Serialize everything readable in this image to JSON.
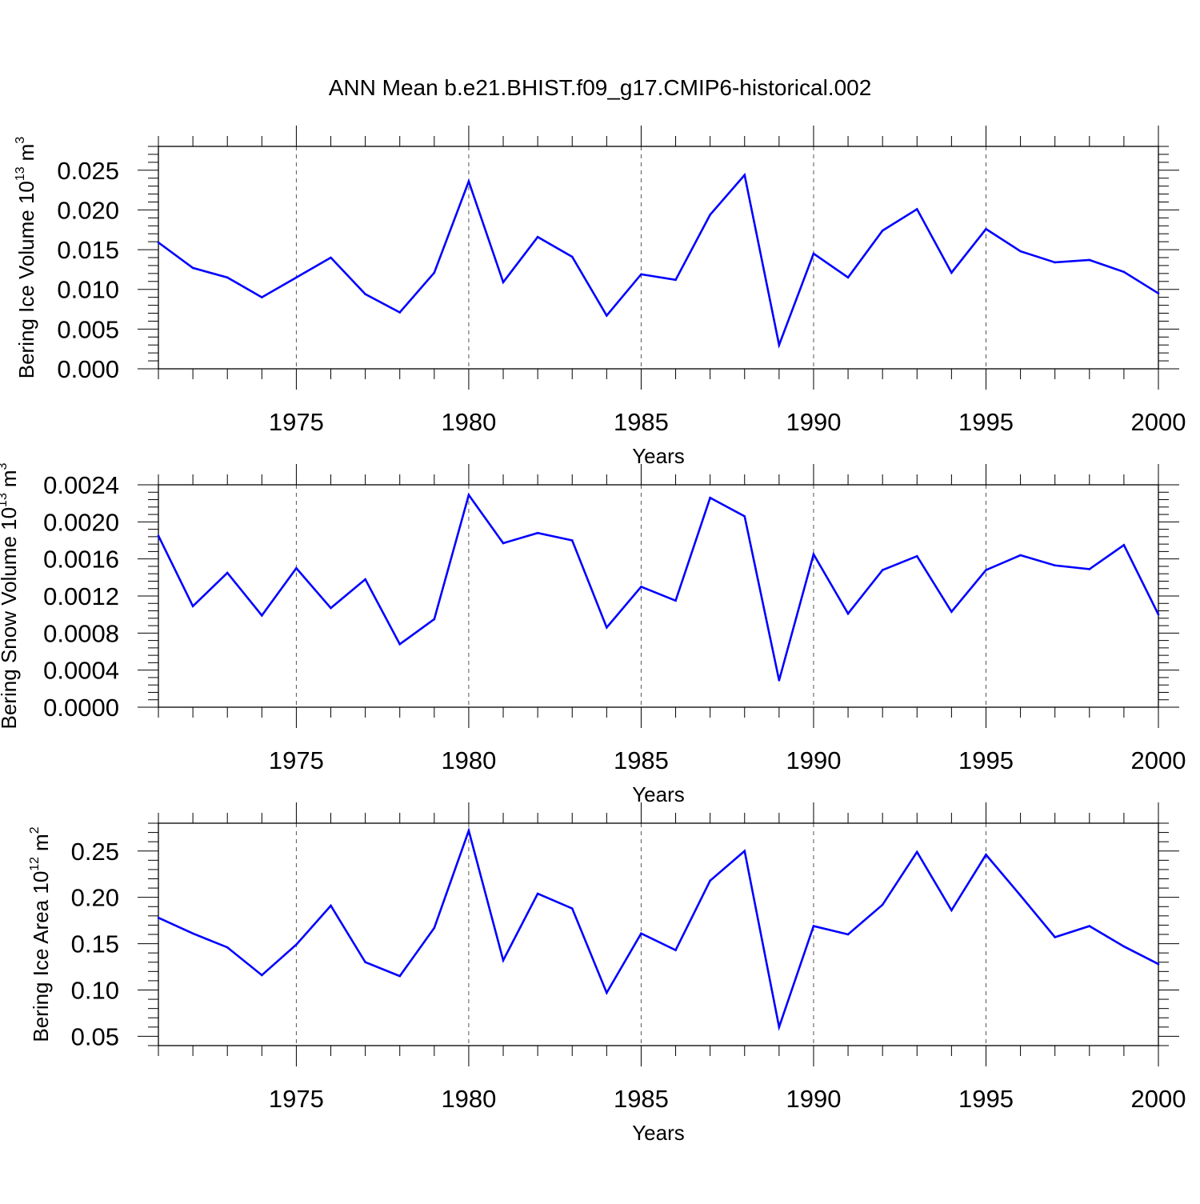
{
  "title": "ANN Mean b.e21.BHIST.f09_g17.CMIP6-historical.002",
  "colors": {
    "line": "#0000ff",
    "axis": "#000000",
    "grid": "#555555"
  },
  "chart_data": [
    {
      "type": "line",
      "ylabel": {
        "text": "Bering Ice Volume 10",
        "exp": "13",
        "unit": "m",
        "unit_exp": "3"
      },
      "xlabel": "Years",
      "xlim": [
        1971,
        2000
      ],
      "ylim": [
        0,
        0.028
      ],
      "yticks": [
        0.0,
        0.005,
        0.01,
        0.015,
        0.02,
        0.025
      ],
      "ytick_labels": [
        "0.000",
        "0.005",
        "0.010",
        "0.015",
        "0.020",
        "0.025"
      ],
      "xticks": [
        1975,
        1980,
        1985,
        1990,
        1995,
        2000
      ],
      "xtick_labels": [
        "1975",
        "1980",
        "1985",
        "1990",
        "1995",
        "2000"
      ],
      "grid": "dashed vertical at major x ticks",
      "x": [
        1971,
        1972,
        1973,
        1974,
        1975,
        1976,
        1977,
        1978,
        1979,
        1980,
        1981,
        1982,
        1983,
        1984,
        1985,
        1986,
        1987,
        1988,
        1989,
        1990,
        1991,
        1992,
        1993,
        1994,
        1995,
        1996,
        1997,
        1998,
        1999,
        2000
      ],
      "values": [
        0.0159,
        0.0127,
        0.0115,
        0.009,
        0.0115,
        0.014,
        0.0094,
        0.0071,
        0.0121,
        0.0236,
        0.0109,
        0.0166,
        0.0141,
        0.0067,
        0.0119,
        0.0112,
        0.0194,
        0.0244,
        0.003,
        0.0145,
        0.0115,
        0.0174,
        0.0201,
        0.0121,
        0.0176,
        0.0148,
        0.0134,
        0.0137,
        0.0122,
        0.0095
      ]
    },
    {
      "type": "line",
      "ylabel": {
        "text": "Bering Snow Volume 10",
        "exp": "13",
        "unit": "m",
        "unit_exp": "3"
      },
      "xlabel": "Years",
      "xlim": [
        1971,
        2000
      ],
      "ylim": [
        0,
        0.0024
      ],
      "yticks": [
        0.0,
        0.0004,
        0.0008,
        0.0012,
        0.0016,
        0.002,
        0.0024
      ],
      "ytick_labels": [
        "0.0000",
        "0.0004",
        "0.0008",
        "0.0012",
        "0.0016",
        "0.0020",
        "0.0024"
      ],
      "xticks": [
        1975,
        1980,
        1985,
        1990,
        1995,
        2000
      ],
      "xtick_labels": [
        "1975",
        "1980",
        "1985",
        "1990",
        "1995",
        "2000"
      ],
      "grid": "dashed vertical at major x ticks",
      "x": [
        1971,
        1972,
        1973,
        1974,
        1975,
        1976,
        1977,
        1978,
        1979,
        1980,
        1981,
        1982,
        1983,
        1984,
        1985,
        1986,
        1987,
        1988,
        1989,
        1990,
        1991,
        1992,
        1993,
        1994,
        1995,
        1996,
        1997,
        1998,
        1999,
        2000
      ],
      "values": [
        0.00185,
        0.00109,
        0.00145,
        0.00099,
        0.0015,
        0.00107,
        0.00138,
        0.00068,
        0.00095,
        0.00229,
        0.00177,
        0.00188,
        0.0018,
        0.00086,
        0.0013,
        0.00115,
        0.00226,
        0.00206,
        0.00029,
        0.00165,
        0.00101,
        0.00148,
        0.00163,
        0.00103,
        0.00148,
        0.00164,
        0.00153,
        0.00149,
        0.00175,
        0.001
      ]
    },
    {
      "type": "line",
      "ylabel": {
        "text": "Bering Ice Area 10",
        "exp": "12",
        "unit": "m",
        "unit_exp": "2"
      },
      "xlabel": "Years",
      "xlim": [
        1971,
        2000
      ],
      "ylim": [
        0.04,
        0.28
      ],
      "yticks": [
        0.05,
        0.1,
        0.15,
        0.2,
        0.25
      ],
      "ytick_labels": [
        "0.05",
        "0.10",
        "0.15",
        "0.20",
        "0.25"
      ],
      "xticks": [
        1975,
        1980,
        1985,
        1990,
        1995,
        2000
      ],
      "xtick_labels": [
        "1975",
        "1980",
        "1985",
        "1990",
        "1995",
        "2000"
      ],
      "grid": "dashed vertical at major x ticks",
      "x": [
        1971,
        1972,
        1973,
        1974,
        1975,
        1976,
        1977,
        1978,
        1979,
        1980,
        1981,
        1982,
        1983,
        1984,
        1985,
        1986,
        1987,
        1988,
        1989,
        1990,
        1991,
        1992,
        1993,
        1994,
        1995,
        1996,
        1997,
        1998,
        1999,
        2000
      ],
      "values": [
        0.178,
        0.161,
        0.146,
        0.116,
        0.149,
        0.191,
        0.13,
        0.115,
        0.167,
        0.272,
        0.132,
        0.204,
        0.188,
        0.097,
        0.161,
        0.143,
        0.218,
        0.25,
        0.06,
        0.169,
        0.16,
        0.192,
        0.249,
        0.186,
        0.246,
        0.202,
        0.157,
        0.169,
        0.147,
        0.128
      ]
    }
  ]
}
